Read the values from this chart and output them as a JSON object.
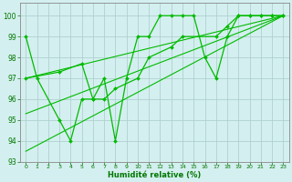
{
  "line1": {
    "x": [
      0,
      1,
      3,
      4,
      5,
      6,
      7,
      8,
      9,
      10,
      11,
      12,
      13,
      14,
      15,
      16,
      17,
      18,
      19,
      20,
      21,
      22,
      23
    ],
    "y": [
      99,
      97,
      95,
      94,
      96,
      96,
      97,
      94,
      97,
      99,
      99,
      100,
      100,
      100,
      100,
      98,
      97,
      99,
      100,
      100,
      100,
      100,
      100
    ],
    "color": "#00bb00",
    "marker": "D",
    "markersize": 2.0,
    "linewidth": 0.9
  },
  "line2": {
    "x": [
      0,
      3,
      5,
      6,
      7,
      8,
      10,
      11,
      13,
      14,
      17,
      18,
      19,
      20,
      21,
      22,
      23
    ],
    "y": [
      97,
      97.3,
      97.7,
      96,
      96,
      96.5,
      97,
      98,
      98.5,
      99,
      99,
      99.5,
      100,
      100,
      100,
      100,
      100
    ],
    "color": "#00bb00",
    "marker": "D",
    "markersize": 2.0,
    "linewidth": 0.9
  },
  "line3_straight": {
    "x": [
      0,
      23
    ],
    "y": [
      97.0,
      100.0
    ],
    "color": "#00bb00",
    "marker": null,
    "markersize": 0,
    "linewidth": 0.8
  },
  "line4_straight": {
    "x": [
      0,
      23
    ],
    "y": [
      95.3,
      100.0
    ],
    "color": "#00bb00",
    "marker": null,
    "markersize": 0,
    "linewidth": 0.8
  },
  "line5_straight": {
    "x": [
      0,
      23
    ],
    "y": [
      93.5,
      100.0
    ],
    "color": "#00bb00",
    "marker": null,
    "markersize": 0,
    "linewidth": 0.8
  },
  "ylim": [
    93,
    100.6
  ],
  "yticks": [
    93,
    94,
    95,
    96,
    97,
    98,
    99,
    100
  ],
  "xlim": [
    -0.5,
    23.5
  ],
  "xticks": [
    0,
    1,
    2,
    3,
    4,
    5,
    6,
    7,
    8,
    9,
    10,
    11,
    12,
    13,
    14,
    15,
    16,
    17,
    18,
    19,
    20,
    21,
    22,
    23
  ],
  "xlabel": "Humidité relative (%)",
  "background_color": "#d4efef",
  "grid_color": "#b0d0d0",
  "label_color": "#007700",
  "tick_color": "#007700",
  "axis_color": "#888888"
}
